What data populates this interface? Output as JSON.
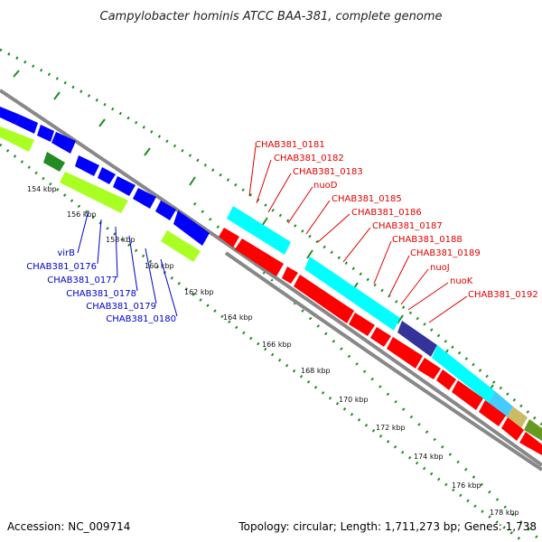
{
  "title": "Campylobacter hominis ATCC BAA-381, complete genome",
  "footer": {
    "accession": "Accession: NC_009714",
    "topology": "Topology: circular; Length: 1,711,273 bp; Genes: 1,738"
  },
  "ticks": [
    "154 kbp",
    "156 kbp",
    "158 kbp",
    "160 kbp",
    "162 kbp",
    "164 kbp",
    "166 kbp",
    "168 kbp",
    "170 kbp",
    "172 kbp",
    "174 kbp",
    "176 kbp",
    "178 kbp"
  ],
  "labels_red": [
    "CHAB381_0181",
    "CHAB381_0182",
    "CHAB381_0183",
    "nuoD",
    "CHAB381_0185",
    "CHAB381_0186",
    "CHAB381_0187",
    "CHAB381_0188",
    "CHAB381_0189",
    "nuoJ",
    "nuoK",
    "CHAB381_0192"
  ],
  "labels_blue": [
    "virB",
    "CHAB381_0176",
    "CHAB381_0177",
    "CHAB381_0178",
    "CHAB381_0179",
    "CHAB381_0180"
  ],
  "colors": {
    "forward_genes": "#0000ff",
    "reverse_genes": "#ff0000",
    "cyan_feature": "#00ffff",
    "lime_feature": "#aaff22",
    "dark_green_feature": "#228b22",
    "navy_feature": "#333399",
    "backbone": "#888888",
    "dotted_ring": "#228b22"
  }
}
